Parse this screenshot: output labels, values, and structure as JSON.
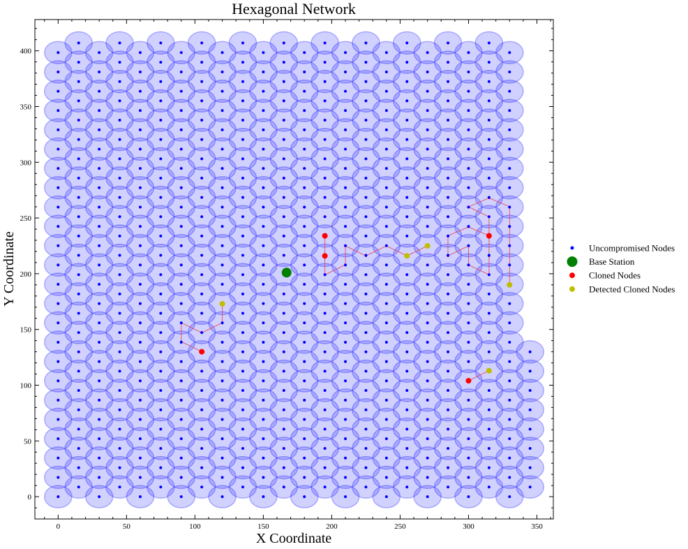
{
  "chart_data": {
    "type": "scatter",
    "title": "Hexagonal Network",
    "xlabel": "X Coordinate",
    "ylabel": "Y Coordinate",
    "xlim": [
      -17,
      362
    ],
    "ylim": [
      -20,
      428
    ],
    "x_ticks": [
      0,
      50,
      100,
      150,
      200,
      250,
      300,
      350
    ],
    "y_ticks": [
      0,
      50,
      100,
      150,
      200,
      250,
      300,
      350,
      400
    ],
    "x_tick_labels": [
      "0",
      "50",
      "100",
      "150",
      "200",
      "250",
      "300",
      "350"
    ],
    "y_tick_labels": [
      "0",
      "50",
      "100",
      "150",
      "200",
      "250",
      "300",
      "350",
      "400"
    ],
    "grid": false,
    "legend_position": "right",
    "grid_pattern": {
      "columns_x_start": 0,
      "columns_x_step": 15,
      "columns": 24,
      "rows_y_start": 0,
      "rows_y_step": 17.32,
      "rows": 24,
      "odd_column_y_offset": 8.66,
      "last_column_rows": 8,
      "sensing_radius": 10
    },
    "colors": {
      "uncompromised": "#0000ff",
      "coverage_fill": "#0000ff",
      "base_station": "#008000",
      "cloned": "#ff0000",
      "detected": "#bfbf00",
      "path": "#e8434c"
    },
    "legend": [
      {
        "label": "Uncompromised Nodes",
        "color": "#0000ff",
        "marker": "small-dot"
      },
      {
        "label": "Base Station",
        "color": "#008000",
        "marker": "large-dot"
      },
      {
        "label": "Cloned Nodes",
        "color": "#ff0000",
        "marker": "dot"
      },
      {
        "label": "Detected Cloned Nodes",
        "color": "#bfbf00",
        "marker": "dot"
      }
    ],
    "base_station": {
      "x": 167,
      "y": 201
    },
    "cloned_nodes": [
      {
        "x": 195,
        "y": 234
      },
      {
        "x": 195,
        "y": 216
      },
      {
        "x": 315,
        "y": 234
      },
      {
        "x": 105,
        "y": 130
      },
      {
        "x": 300,
        "y": 104
      }
    ],
    "detected_cloned_nodes": [
      {
        "x": 270,
        "y": 225
      },
      {
        "x": 255,
        "y": 216
      },
      {
        "x": 330,
        "y": 190
      },
      {
        "x": 120,
        "y": 173
      },
      {
        "x": 315,
        "y": 113
      }
    ],
    "paths": [
      [
        [
          195,
          234
        ],
        [
          195,
          216
        ],
        [
          195,
          199
        ],
        [
          210,
          208
        ],
        [
          210,
          225
        ],
        [
          225,
          216
        ],
        [
          240,
          225
        ],
        [
          255,
          216
        ],
        [
          270,
          225
        ]
      ],
      [
        [
          105,
          130
        ],
        [
          90,
          139
        ],
        [
          90,
          156
        ],
        [
          105,
          147
        ],
        [
          120,
          156
        ],
        [
          120,
          173
        ]
      ],
      [
        [
          300,
          104
        ],
        [
          315,
          113
        ]
      ],
      [
        [
          315,
          234
        ],
        [
          300,
          242
        ],
        [
          285,
          234
        ],
        [
          285,
          216
        ],
        [
          300,
          225
        ],
        [
          300,
          208
        ],
        [
          315,
          199
        ],
        [
          315,
          216
        ],
        [
          315,
          234
        ],
        [
          315,
          251
        ],
        [
          300,
          260
        ],
        [
          315,
          268
        ],
        [
          330,
          260
        ],
        [
          330,
          242
        ],
        [
          330,
          225
        ],
        [
          330,
          208
        ],
        [
          330,
          190
        ]
      ]
    ]
  }
}
